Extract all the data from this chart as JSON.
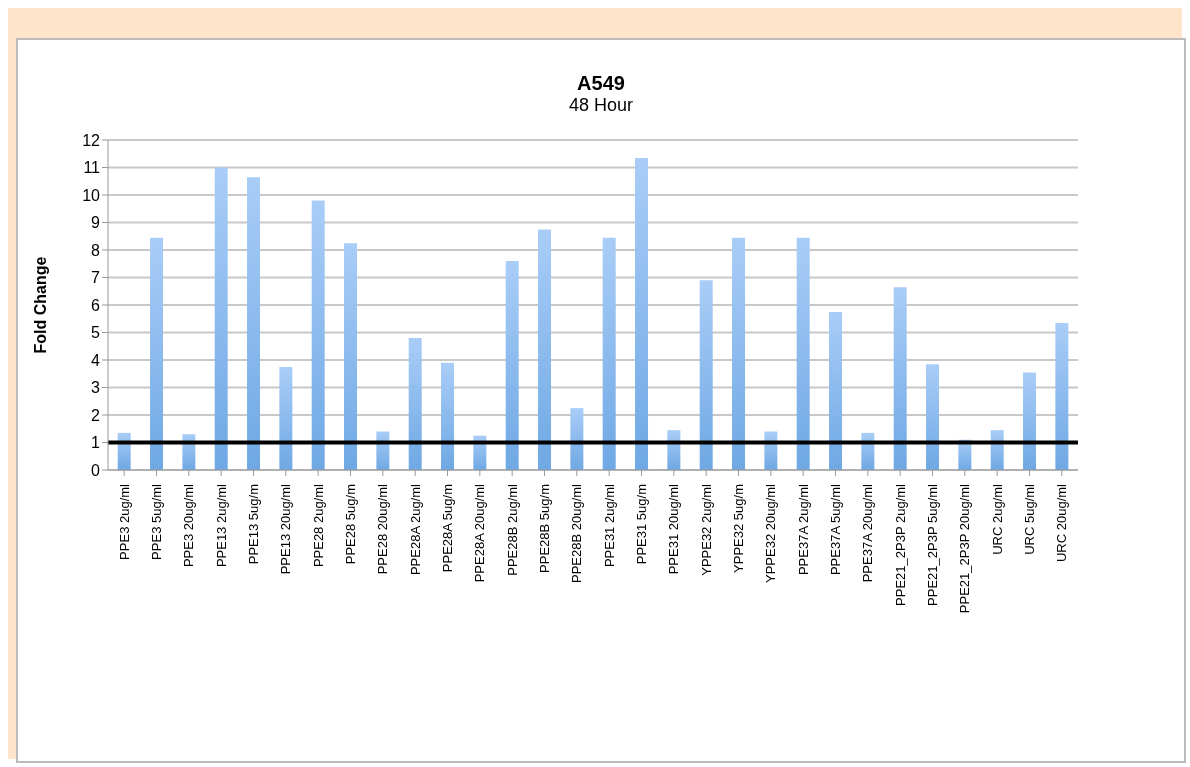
{
  "chart_data": {
    "type": "bar",
    "title": "A549",
    "subtitle": "48 Hour",
    "ylabel": "Fold Change",
    "categories": [
      "PPE3 2ug/ml",
      "PPE3 5ug/ml",
      "PPE3 20ug/ml",
      "PPE13 2ug/ml",
      "PPE13 5ug/m",
      "PPE13 20ug/ml",
      "PPE28 2ug/ml",
      "PPE28 5ug/m",
      "PPE28 20ug/ml",
      "PPE28A 2ug/ml",
      "PPE28A 5ug/m",
      "PPE28A 20ug/ml",
      "PPE28B 2ug/ml",
      "PPE28B 5ug/m",
      "PPE28B 20ug/ml",
      "PPE31 2ug/ml",
      "PPE31 5ug/m",
      "PPE31 20ug/ml",
      "YPPE32 2ug/ml",
      "YPPE32 5ug/m",
      "YPPE32 20ug/ml",
      "PPE37A 2ug/ml",
      "PPE37A 5ug/ml",
      "PPE37A 20ug/ml",
      "PPE21_2P3P 2ug/ml",
      "PPE21_2P3P 5ug/ml",
      "PPE21_2P3P 20ug/ml",
      "URC 2ug/ml",
      "URC 5ug/ml",
      "URC 20ug/ml"
    ],
    "values": [
      1.35,
      8.45,
      1.3,
      11.0,
      10.65,
      3.75,
      9.8,
      8.25,
      1.4,
      4.8,
      3.9,
      1.25,
      7.6,
      8.75,
      2.25,
      8.45,
      11.35,
      1.45,
      6.9,
      8.45,
      1.4,
      8.45,
      5.75,
      1.35,
      6.65,
      3.85,
      1.1,
      1.45,
      3.55,
      5.35
    ],
    "color": "#6fa8e4",
    "ylim": [
      0,
      12
    ],
    "yticks": [
      0,
      1,
      2,
      3,
      4,
      5,
      6,
      7,
      8,
      9,
      10,
      11,
      12
    ],
    "grid": "y",
    "ref_lines": [
      {
        "axis": "y",
        "value": 1,
        "color": "#000000"
      }
    ]
  }
}
